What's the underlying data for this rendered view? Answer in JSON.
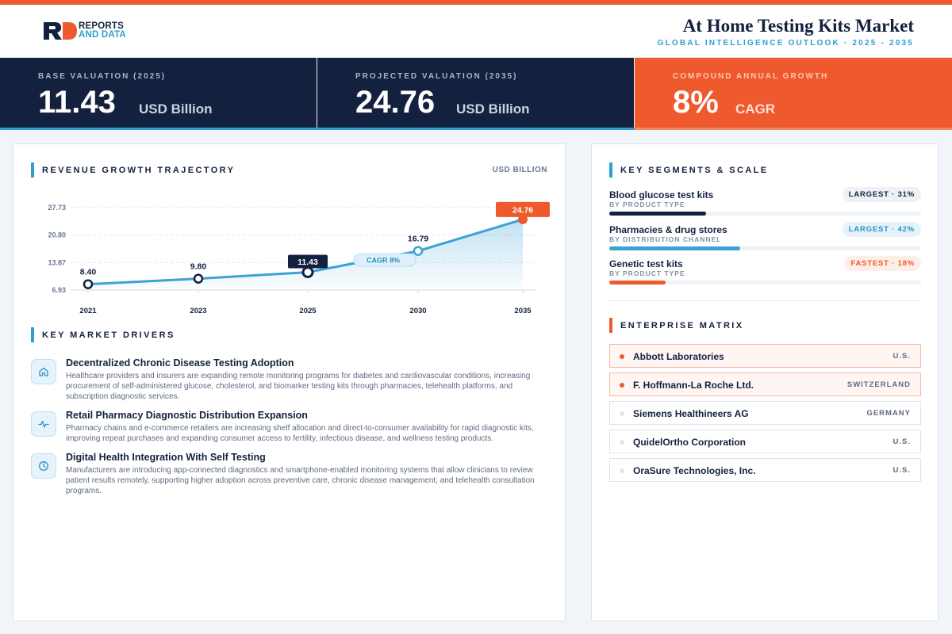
{
  "header": {
    "logo_line1": "REPORTS",
    "logo_line2": "AND DATA",
    "title": "At Home Testing Kits Market",
    "subtitle": "GLOBAL INTELLIGENCE OUTLOOK  ·  2025 - 2035"
  },
  "kpis": [
    {
      "label": "BASE VALUATION (2025)",
      "value": "11.43",
      "unit": "USD Billion"
    },
    {
      "label": "PROJECTED VALUATION (2035)",
      "value": "24.76",
      "unit": "USD Billion"
    },
    {
      "label": "COMPOUND ANNUAL GROWTH",
      "value": "8%",
      "unit": "CAGR"
    }
  ],
  "chart_section": {
    "title": "REVENUE GROWTH TRAJECTORY",
    "unit_label": "USD BILLION"
  },
  "chart_data": {
    "type": "area",
    "x": [
      "2021",
      "2023",
      "2025",
      "2030",
      "2035"
    ],
    "values": [
      8.4,
      9.8,
      11.43,
      16.79,
      24.76
    ],
    "value_labels": [
      "8.40",
      "9.80",
      "11.43",
      "16.79",
      "24.76"
    ],
    "y_ticks": [
      "6.93",
      "13.87",
      "20.80",
      "27.73"
    ],
    "y_tick_values": [
      6.93,
      13.87,
      20.8,
      27.73
    ],
    "ylim": [
      6.93,
      27.73
    ],
    "annotation": "CAGR 8%",
    "grid": true,
    "colors": {
      "line": "#3aa3d6",
      "highlight": "#13213f",
      "end": "#ee5a2e"
    }
  },
  "drivers_section": {
    "title": "KEY MARKET DRIVERS"
  },
  "drivers": [
    {
      "icon": "home-icon",
      "title": "Decentralized Chronic Disease Testing Adoption",
      "desc": "Healthcare providers and insurers are expanding remote monitoring programs for diabetes and cardiovascular conditions, increasing procurement of self-administered glucose, cholesterol, and biomarker testing kits through pharmacies, telehealth platforms, and subscription diagnostic services."
    },
    {
      "icon": "pulse-icon",
      "title": "Retail Pharmacy Diagnostic Distribution Expansion",
      "desc": "Pharmacy chains and e-commerce retailers are increasing shelf allocation and direct-to-consumer availability for rapid diagnostic kits, improving repeat purchases and expanding consumer access to fertility, infectious disease, and wellness testing products."
    },
    {
      "icon": "clock-icon",
      "title": "Digital Health Integration With Self Testing",
      "desc": "Manufacturers are introducing app-connected diagnostics and smartphone-enabled monitoring systems that allow clinicians to review patient results remotely, supporting higher adoption across preventive care, chronic disease management, and telehealth consultation programs."
    }
  ],
  "segments_section": {
    "title": "KEY SEGMENTS & SCALE"
  },
  "segments": [
    {
      "name": "Blood glucose test kits",
      "category": "BY PRODUCT TYPE",
      "badge": "LARGEST · 31%",
      "share": 31,
      "color": "#13213f",
      "badge_bg": "#eef1f5",
      "badge_fg": "#13213f"
    },
    {
      "name": "Pharmacies & drug stores",
      "category": "BY DISTRIBUTION CHANNEL",
      "badge": "LARGEST · 42%",
      "share": 42,
      "color": "#3aa3d6",
      "badge_bg": "#e6f3fb",
      "badge_fg": "#2a8fc4"
    },
    {
      "name": "Genetic test kits",
      "category": "BY PRODUCT TYPE",
      "badge": "FASTEST · 18%",
      "share": 18,
      "color": "#ee5a2e",
      "badge_bg": "#fdeee8",
      "badge_fg": "#ee5a2e"
    }
  ],
  "enterprise_section": {
    "title": "ENTERPRISE MATRIX"
  },
  "enterprises": [
    {
      "name": "Abbott Laboratories",
      "country": "U.S.",
      "highlight": true
    },
    {
      "name": "F. Hoffmann-La Roche Ltd.",
      "country": "SWITZERLAND",
      "highlight": true
    },
    {
      "name": "Siemens Healthineers AG",
      "country": "GERMANY",
      "highlight": false
    },
    {
      "name": "QuidelOrtho Corporation",
      "country": "U.S.",
      "highlight": false
    },
    {
      "name": "OraSure Technologies, Inc.",
      "country": "U.S.",
      "highlight": false
    }
  ]
}
